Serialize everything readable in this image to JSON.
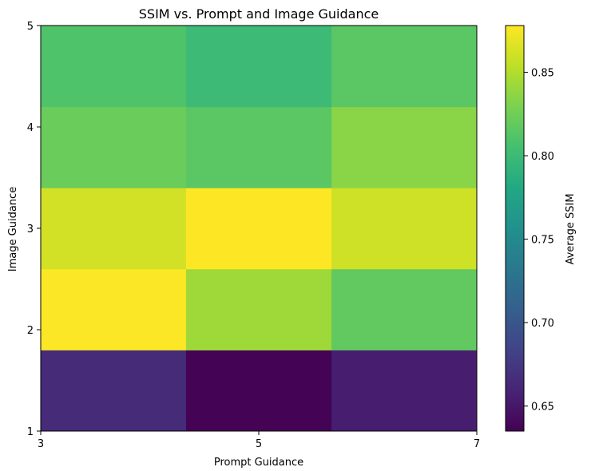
{
  "chart_data": {
    "type": "heatmap",
    "title": "SSIM vs. Prompt and Image Guidance",
    "xlabel": "Prompt Guidance",
    "ylabel": "Image Guidance",
    "colorbar_label": "Average SSIM",
    "colormap": "viridis",
    "x_edges": [
      3,
      4.333,
      5.667,
      7
    ],
    "y_edges": [
      1,
      1.8,
      2.6,
      3.4,
      4.2,
      5
    ],
    "x_ticks": [
      3,
      5,
      7
    ],
    "y_ticks": [
      1,
      2,
      3,
      4,
      5
    ],
    "x_tick_labels": [
      "3",
      "5",
      "7"
    ],
    "y_tick_labels": [
      "1",
      "2",
      "3",
      "4",
      "5"
    ],
    "xlim": [
      3,
      7
    ],
    "ylim": [
      1,
      5
    ],
    "color_range": [
      0.635,
      0.878
    ],
    "colorbar_ticks": [
      0.65,
      0.7,
      0.75,
      0.8,
      0.85
    ],
    "colorbar_tick_labels": [
      "0.65",
      "0.70",
      "0.75",
      "0.80",
      "0.85"
    ],
    "values": [
      [
        0.665,
        0.636,
        0.655
      ],
      [
        0.877,
        0.843,
        0.818
      ],
      [
        0.862,
        0.878,
        0.86
      ],
      [
        0.822,
        0.815,
        0.835
      ],
      [
        0.81,
        0.8,
        0.815
      ]
    ],
    "grid": false
  }
}
